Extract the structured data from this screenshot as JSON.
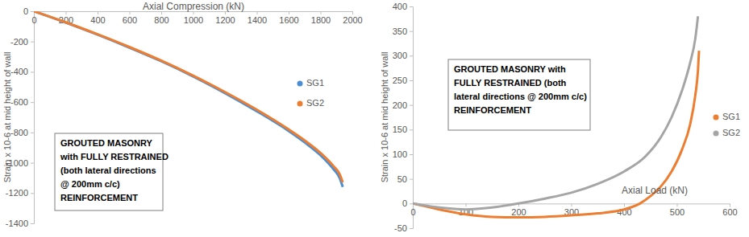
{
  "chart_data": [
    {
      "type": "line",
      "x_label": "Axial Compression (kN)",
      "y_label": "Strain x 10-6 at  mid height of wall",
      "annotation": [
        "GROUTED MASONRY",
        "with FULLY RESTRAINED",
        "(both lateral directions",
        "@ 200mm c/c)",
        "REINFORCEMENT"
      ],
      "xlim": [
        0,
        2000
      ],
      "xticks": [
        0,
        200,
        400,
        600,
        800,
        1000,
        1200,
        1400,
        1600,
        1800,
        2000
      ],
      "ylim": [
        -1400,
        0
      ],
      "yticks": [
        -1400,
        -1200,
        -1000,
        -800,
        -600,
        -400,
        -200,
        0
      ],
      "grid": false,
      "legend": "right",
      "series": [
        {
          "name": "SG1",
          "color": "#4a8fd6",
          "x": [
            0,
            200,
            400,
            600,
            800,
            1000,
            1200,
            1400,
            1600,
            1700,
            1800,
            1880,
            1920,
            1940
          ],
          "values": [
            0,
            -75,
            -155,
            -240,
            -330,
            -430,
            -540,
            -660,
            -790,
            -865,
            -950,
            -1040,
            -1100,
            -1160
          ]
        },
        {
          "name": "SG2",
          "color": "#ed7d31",
          "x": [
            0,
            200,
            400,
            600,
            800,
            1000,
            1200,
            1400,
            1600,
            1700,
            1800,
            1880,
            1920,
            1940
          ],
          "values": [
            0,
            -73,
            -152,
            -236,
            -326,
            -425,
            -533,
            -650,
            -780,
            -852,
            -935,
            -1020,
            -1075,
            -1130
          ]
        }
      ]
    },
    {
      "type": "line",
      "x_label": "Axial Load (kN)",
      "y_label": "Strain x 10-6 at mid height of wall",
      "annotation": [
        "GROUTED MASONRY with",
        "FULLY RESTRAINED (both",
        "lateral directions @ 200mm c/c)",
        "REINFORCEMENT"
      ],
      "xlim": [
        0,
        600
      ],
      "xticks": [
        0,
        100,
        200,
        300,
        400,
        500,
        600
      ],
      "ylim": [
        -50,
        400
      ],
      "yticks": [
        -50,
        0,
        50,
        100,
        150,
        200,
        250,
        300,
        350,
        400
      ],
      "grid": false,
      "legend": "right",
      "series": [
        {
          "name": "SG1",
          "color": "#ed7d31",
          "x": [
            0,
            50,
            100,
            150,
            200,
            250,
            300,
            350,
            400,
            430,
            450,
            470,
            490,
            510,
            525,
            535,
            540,
            542
          ],
          "values": [
            0,
            -12,
            -22,
            -27,
            -28,
            -27,
            -24,
            -20,
            -12,
            0,
            15,
            35,
            65,
            110,
            160,
            220,
            270,
            310
          ]
        },
        {
          "name": "SG2",
          "color": "#a5a5a5",
          "x": [
            0,
            50,
            100,
            150,
            200,
            250,
            300,
            350,
            400,
            440,
            470,
            490,
            510,
            525,
            535,
            540
          ],
          "values": [
            0,
            -8,
            -12,
            -8,
            0,
            10,
            22,
            40,
            65,
            95,
            135,
            175,
            230,
            285,
            335,
            380
          ]
        }
      ]
    }
  ]
}
